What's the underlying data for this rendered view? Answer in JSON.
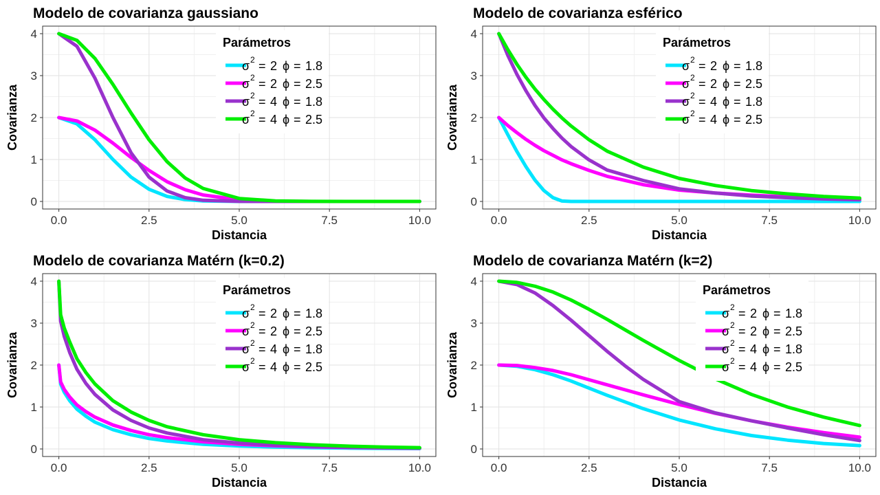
{
  "chart_data": [
    {
      "type": "line",
      "title": "Modelo de covarianza gaussiano",
      "xlabel": "Distancia",
      "ylabel": "Covarianza",
      "xlim": [
        0,
        10
      ],
      "ylim": [
        0,
        4
      ],
      "xticks": [
        "0.0",
        "2.5",
        "5.0",
        "7.5",
        "10.0"
      ],
      "yticks": [
        "0",
        "1",
        "2",
        "3",
        "4"
      ],
      "grid": true,
      "legend": {
        "title": "Parámetros",
        "placement": "top-center"
      },
      "x": [
        0,
        0.5,
        1,
        1.5,
        2,
        2.5,
        3,
        3.5,
        4,
        5,
        6,
        7,
        8,
        9,
        10
      ],
      "series": [
        {
          "name": "σ² = 2  ϕ = 1.8",
          "sigma2": "2",
          "phi": "1.8",
          "color": "#00e5ff",
          "values": [
            2,
            1.85,
            1.47,
            1,
            0.58,
            0.29,
            0.12,
            0.045,
            0.014,
            0.001,
            0,
            0,
            0,
            0,
            0
          ]
        },
        {
          "name": "σ² = 2  ϕ = 2.5",
          "sigma2": "2",
          "phi": "2.5",
          "color": "#ff00ff",
          "values": [
            2,
            1.92,
            1.7,
            1.39,
            1.05,
            0.74,
            0.47,
            0.28,
            0.155,
            0.04,
            0.006,
            0.001,
            0,
            0,
            0
          ]
        },
        {
          "name": "σ² = 4  ϕ = 1.8",
          "sigma2": "4",
          "phi": "1.8",
          "color": "#9932cc",
          "values": [
            4,
            3.7,
            2.94,
            2,
            1.16,
            0.58,
            0.25,
            0.09,
            0.028,
            0.002,
            0,
            0,
            0,
            0,
            0
          ]
        },
        {
          "name": "σ² = 4  ϕ = 2.5",
          "sigma2": "4",
          "phi": "2.5",
          "color": "#00ee00",
          "values": [
            4,
            3.84,
            3.41,
            2.79,
            2.11,
            1.47,
            0.95,
            0.56,
            0.31,
            0.07,
            0.013,
            0.002,
            0,
            0,
            0
          ]
        }
      ]
    },
    {
      "type": "line",
      "title": "Modelo de covarianza esférico",
      "xlabel": "Distancia",
      "ylabel": "Covarianza",
      "xlim": [
        0,
        10
      ],
      "ylim": [
        0,
        4
      ],
      "xticks": [
        "0.0",
        "2.5",
        "5.0",
        "7.5",
        "10.0"
      ],
      "yticks": [
        "0",
        "1",
        "2",
        "3",
        "4"
      ],
      "grid": true,
      "legend": {
        "title": "Parámetros",
        "placement": "top-center"
      },
      "x": [
        0,
        0.25,
        0.5,
        0.75,
        1,
        1.25,
        1.5,
        1.75,
        2,
        2.5,
        3,
        4,
        5,
        6,
        7,
        8,
        9,
        10
      ],
      "series": [
        {
          "name": "σ² = 2  ϕ = 1.8",
          "sigma2": "2",
          "phi": "1.8",
          "color": "#00e5ff",
          "values": [
            2,
            1.59,
            1.19,
            0.83,
            0.51,
            0.26,
            0.09,
            0.01,
            0,
            0,
            0,
            0,
            0,
            0,
            0,
            0,
            0,
            0
          ]
        },
        {
          "name": "σ² = 2  ϕ = 2.5",
          "sigma2": "2",
          "phi": "2.5",
          "color": "#ff00ff",
          "values": [
            2,
            1.81,
            1.64,
            1.48,
            1.34,
            1.21,
            1.1,
            0.99,
            0.9,
            0.74,
            0.6,
            0.4,
            0.27,
            0.2,
            0.15,
            0.11,
            0.08,
            0.06
          ]
        },
        {
          "name": "σ² = 4  ϕ = 1.8",
          "sigma2": "4",
          "phi": "1.8",
          "color": "#9932cc",
          "values": [
            4,
            3.48,
            3.03,
            2.64,
            2.29,
            1.99,
            1.74,
            1.51,
            1.31,
            0.99,
            0.75,
            0.5,
            0.3,
            0.2,
            0.13,
            0.09,
            0.06,
            0.04
          ]
        },
        {
          "name": "σ² = 4  ϕ = 2.5",
          "sigma2": "4",
          "phi": "2.5",
          "color": "#00ee00",
          "values": [
            4,
            3.62,
            3.27,
            2.96,
            2.68,
            2.43,
            2.2,
            1.99,
            1.8,
            1.47,
            1.2,
            0.82,
            0.55,
            0.38,
            0.26,
            0.18,
            0.12,
            0.08
          ]
        }
      ]
    },
    {
      "type": "line",
      "title": "Modelo de covarianza Matérn (k=0.2)",
      "xlabel": "Distancia",
      "ylabel": "Covarianza",
      "xlim": [
        0,
        10
      ],
      "ylim": [
        0,
        4
      ],
      "xticks": [
        "0.0",
        "2.5",
        "5.0",
        "7.5",
        "10.0"
      ],
      "yticks": [
        "0",
        "1",
        "2",
        "3",
        "4"
      ],
      "grid": true,
      "legend": {
        "title": "Parámetros",
        "placement": "top-center"
      },
      "x": [
        0,
        0.05,
        0.15,
        0.3,
        0.5,
        0.75,
        1,
        1.5,
        2,
        2.5,
        3,
        4,
        5,
        6,
        7,
        8,
        9,
        10
      ],
      "series": [
        {
          "name": "σ² = 2  ϕ = 1.8",
          "sigma2": "2",
          "phi": "1.8",
          "color": "#00e5ff",
          "values": [
            2,
            1.55,
            1.35,
            1.15,
            0.95,
            0.78,
            0.64,
            0.46,
            0.34,
            0.25,
            0.19,
            0.11,
            0.07,
            0.045,
            0.03,
            0.02,
            0.013,
            0.009
          ]
        },
        {
          "name": "σ² = 2  ϕ = 2.5",
          "sigma2": "2",
          "phi": "2.5",
          "color": "#ff00ff",
          "values": [
            2,
            1.6,
            1.42,
            1.24,
            1.05,
            0.89,
            0.76,
            0.57,
            0.44,
            0.34,
            0.27,
            0.17,
            0.11,
            0.075,
            0.05,
            0.034,
            0.023,
            0.016
          ]
        },
        {
          "name": "σ² = 4  ϕ = 1.8",
          "sigma2": "4",
          "phi": "1.8",
          "color": "#9932cc",
          "values": [
            4,
            3.05,
            2.68,
            2.3,
            1.9,
            1.56,
            1.3,
            0.93,
            0.68,
            0.5,
            0.38,
            0.22,
            0.14,
            0.09,
            0.06,
            0.04,
            0.026,
            0.018
          ]
        },
        {
          "name": "σ² = 4  ϕ = 2.5",
          "sigma2": "4",
          "phi": "2.5",
          "color": "#00ee00",
          "values": [
            4,
            3.2,
            2.88,
            2.55,
            2.15,
            1.82,
            1.55,
            1.15,
            0.88,
            0.68,
            0.53,
            0.34,
            0.22,
            0.15,
            0.1,
            0.068,
            0.046,
            0.032
          ]
        }
      ]
    },
    {
      "type": "line",
      "title": "Modelo de covarianza Matérn (k=2)",
      "xlabel": "Distancia",
      "ylabel": "Covarianza",
      "xlim": [
        0,
        10
      ],
      "ylim": [
        0,
        4
      ],
      "xticks": [
        "0.0",
        "2.5",
        "5.0",
        "7.5",
        "10.0"
      ],
      "yticks": [
        "0",
        "1",
        "2",
        "3",
        "4"
      ],
      "grid": true,
      "legend": {
        "title": "Parámetros",
        "placement": "top-right"
      },
      "x": [
        0,
        0.5,
        1,
        1.5,
        2,
        2.5,
        3,
        3.5,
        4,
        5,
        6,
        7,
        8,
        9,
        10
      ],
      "series": [
        {
          "name": "σ² = 2  ϕ = 1.8",
          "sigma2": "2",
          "phi": "1.8",
          "color": "#00e5ff",
          "values": [
            2,
            1.97,
            1.89,
            1.77,
            1.62,
            1.45,
            1.28,
            1.12,
            0.96,
            0.69,
            0.48,
            0.32,
            0.21,
            0.13,
            0.08
          ]
        },
        {
          "name": "σ² = 2  ϕ = 2.5",
          "sigma2": "2",
          "phi": "2.5",
          "color": "#ff00ff",
          "values": [
            2,
            1.99,
            1.94,
            1.87,
            1.77,
            1.65,
            1.53,
            1.41,
            1.29,
            1.06,
            0.85,
            0.67,
            0.52,
            0.39,
            0.28
          ]
        },
        {
          "name": "σ² = 4  ϕ = 1.8",
          "sigma2": "4",
          "phi": "1.8",
          "color": "#9932cc",
          "values": [
            4,
            3.92,
            3.72,
            3.42,
            3.07,
            2.7,
            2.33,
            1.98,
            1.66,
            1.13,
            0.86,
            0.67,
            0.5,
            0.34,
            0.2
          ]
        },
        {
          "name": "σ² = 4  ϕ = 2.5",
          "sigma2": "4",
          "phi": "2.5",
          "color": "#00ee00",
          "values": [
            4,
            3.97,
            3.88,
            3.74,
            3.55,
            3.33,
            3.09,
            2.84,
            2.59,
            2.11,
            1.67,
            1.3,
            1.0,
            0.76,
            0.56
          ]
        }
      ]
    }
  ]
}
